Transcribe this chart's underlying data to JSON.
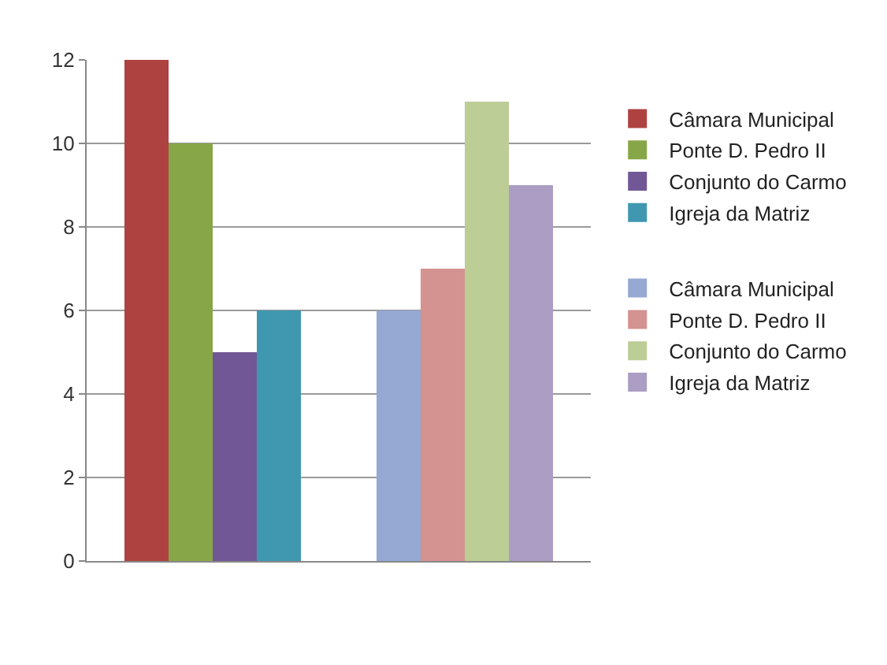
{
  "chart_data": {
    "type": "bar",
    "categories": [
      null,
      null
    ],
    "series": [
      {
        "name": "Câmara Municipal",
        "color": "#ad4240",
        "values": [
          12,
          null
        ]
      },
      {
        "name": "Ponte D. Pedro II",
        "color": "#87a647",
        "values": [
          10,
          null
        ]
      },
      {
        "name": "Conjunto do Carmo",
        "color": "#715796",
        "values": [
          5,
          null
        ]
      },
      {
        "name": "Igreja da Matriz",
        "color": "#3f98b0",
        "values": [
          6,
          null
        ]
      },
      {
        "name": "Câmara Municipal",
        "color": "#95a9d3",
        "values": [
          null,
          6
        ]
      },
      {
        "name": "Ponte D. Pedro II",
        "color": "#d49290",
        "values": [
          null,
          7
        ]
      },
      {
        "name": "Conjunto do Carmo",
        "color": "#bccd95",
        "values": [
          null,
          11
        ]
      },
      {
        "name": "Igreja da Matriz",
        "color": "#ab9dc3",
        "values": [
          null,
          9
        ]
      }
    ],
    "ylim": [
      0,
      12
    ],
    "yticks": [
      0,
      2,
      4,
      6,
      8,
      10,
      12
    ],
    "grid": "y",
    "legend": "right"
  }
}
